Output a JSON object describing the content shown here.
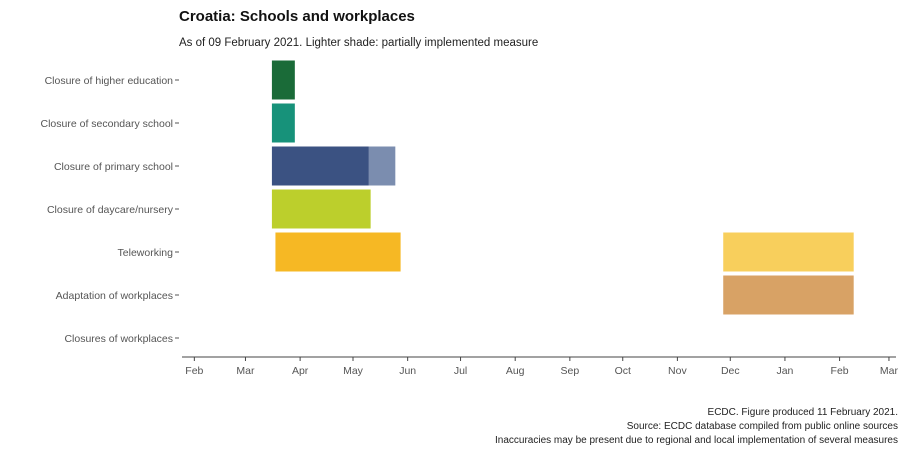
{
  "title": "Croatia: Schools and workplaces",
  "subtitle": "As of 09 February 2021. Lighter shade: partially implemented measure",
  "caption": [
    "ECDC. Figure produced 11 February 2021.",
    "Source: ECDC database compiled from public online sources",
    "Inaccuracies may be present due to regional and local implementation of several measures"
  ],
  "chart_data": {
    "type": "bar",
    "orientation": "horizontal-timeline",
    "title": "Croatia: Schools and workplaces",
    "subtitle": "As of 09 February 2021. Lighter shade: partially implemented measure",
    "categories": [
      "Closure of higher education",
      "Closure of secondary school",
      "Closure of primary school",
      "Closure of daycare/nursery",
      "Teleworking",
      "Adaptation of workplaces",
      "Closures of workplaces"
    ],
    "x_ticks": [
      "Feb",
      "Mar",
      "Apr",
      "May",
      "Jun",
      "Jul",
      "Aug",
      "Sep",
      "Oct",
      "Nov",
      "Dec",
      "Jan",
      "Feb",
      "Mar"
    ],
    "xlim": [
      "2020-01-25",
      "2021-03-05"
    ],
    "legend": "none",
    "grid": false,
    "bars": [
      {
        "category": "Closure of higher education",
        "start": "2020-03-16",
        "end": "2020-03-29",
        "status": "full",
        "color": "#1a6b38"
      },
      {
        "category": "Closure of secondary school",
        "start": "2020-03-16",
        "end": "2020-03-29",
        "status": "full",
        "color": "#17927a"
      },
      {
        "category": "Closure of primary school",
        "start": "2020-03-16",
        "end": "2020-05-10",
        "status": "full",
        "color": "#3b5282"
      },
      {
        "category": "Closure of primary school",
        "start": "2020-05-10",
        "end": "2020-05-25",
        "status": "partial",
        "color": "#7b8daf"
      },
      {
        "category": "Closure of daycare/nursery",
        "start": "2020-03-16",
        "end": "2020-05-11",
        "status": "full",
        "color": "#bccf2c"
      },
      {
        "category": "Teleworking",
        "start": "2020-03-18",
        "end": "2020-05-28",
        "status": "full",
        "color": "#f6b824"
      },
      {
        "category": "Teleworking",
        "start": "2020-11-27",
        "end": "2021-02-09",
        "status": "partial",
        "color": "#f8cf5c"
      },
      {
        "category": "Adaptation of workplaces",
        "start": "2020-11-27",
        "end": "2021-02-09",
        "status": "partial",
        "color": "#d8a265"
      }
    ]
  }
}
